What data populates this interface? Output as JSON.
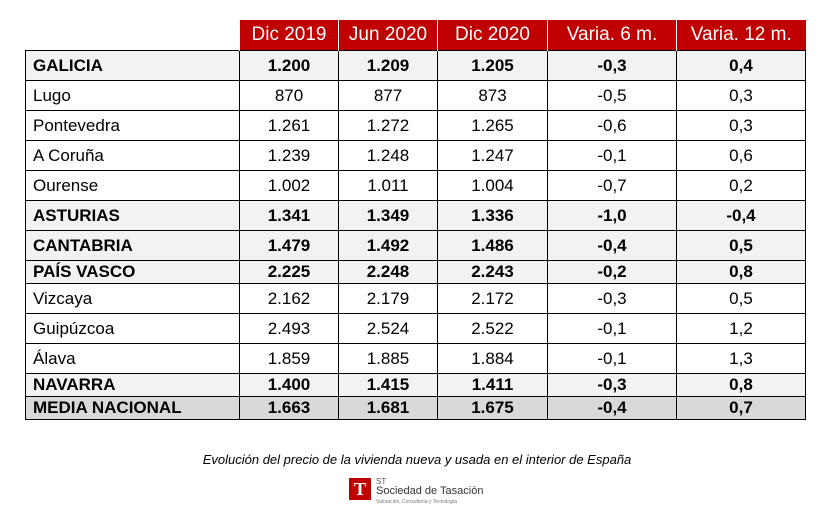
{
  "table": {
    "headers": [
      "",
      "Dic 2019",
      "Jun 2020",
      "Dic 2020",
      "Varia. 6 m.",
      "Varia. 12 m."
    ],
    "rows": [
      {
        "name": "GALICIA",
        "bold": true,
        "values": [
          "1.200",
          "1.209",
          "1.205",
          "-0,3",
          "0,4"
        ]
      },
      {
        "name": "Lugo",
        "bold": false,
        "values": [
          "870",
          "877",
          "873",
          "-0,5",
          "0,3"
        ]
      },
      {
        "name": "Pontevedra",
        "bold": false,
        "values": [
          "1.261",
          "1.272",
          "1.265",
          "-0,6",
          "0,3"
        ]
      },
      {
        "name": "A Coruña",
        "bold": false,
        "values": [
          "1.239",
          "1.248",
          "1.247",
          "-0,1",
          "0,6"
        ]
      },
      {
        "name": "Ourense",
        "bold": false,
        "values": [
          "1.002",
          "1.011",
          "1.004",
          "-0,7",
          "0,2"
        ]
      },
      {
        "name": "ASTURIAS",
        "bold": true,
        "values": [
          "1.341",
          "1.349",
          "1.336",
          "-1,0",
          "-0,4"
        ]
      },
      {
        "name": "CANTABRIA",
        "bold": true,
        "values": [
          "1.479",
          "1.492",
          "1.486",
          "-0,4",
          "0,5"
        ]
      },
      {
        "name": "PAÍS VASCO",
        "bold": true,
        "values": [
          "2.225",
          "2.248",
          "2.243",
          "-0,2",
          "0,8"
        ]
      },
      {
        "name": "Vizcaya",
        "bold": false,
        "values": [
          "2.162",
          "2.179",
          "2.172",
          "-0,3",
          "0,5"
        ]
      },
      {
        "name": "Guipúzcoa",
        "bold": false,
        "values": [
          "2.493",
          "2.524",
          "2.522",
          "-0,1",
          "1,2"
        ]
      },
      {
        "name": "Álava",
        "bold": false,
        "values": [
          "1.859",
          "1.885",
          "1.884",
          "-0,1",
          "1,3"
        ]
      },
      {
        "name": "NAVARRA",
        "bold": true,
        "values": [
          "1.400",
          "1.415",
          "1.411",
          "-0,3",
          "0,8"
        ]
      },
      {
        "name": "MEDIA NACIONAL",
        "bold": true,
        "total": true,
        "values": [
          "1.663",
          "1.681",
          "1.675",
          "-0,4",
          "0,7"
        ]
      }
    ]
  },
  "caption": "Evolución del precio de la vivienda nueva y usada en el interior de España",
  "logo": {
    "mark": "T",
    "abbr": "ST",
    "name": "Sociedad de Tasación",
    "tagline": "Valoración, Consultoría y Tecnología"
  },
  "colors": {
    "header_bg": "#c00000",
    "bold_row_bg": "#f2f2f2",
    "total_row_bg": "#d9d9d9"
  }
}
